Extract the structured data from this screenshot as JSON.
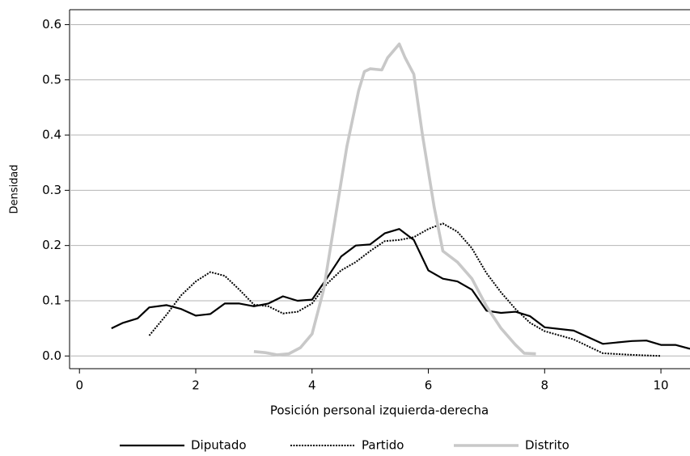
{
  "chart_data": {
    "type": "line",
    "xlabel": "Posición personal izquierda-derecha",
    "ylabel": "Densidad",
    "xlim": [
      -0.17,
      10.5
    ],
    "ylim": [
      -0.023,
      0.627
    ],
    "xticks": [
      0,
      2,
      4,
      6,
      8,
      10
    ],
    "yticks": [
      {
        "value": 0,
        "label": "0.0"
      },
      0.1,
      0.2,
      0.3,
      0.4,
      0.5,
      0.6
    ],
    "grid": true,
    "legend": "bottom",
    "series": [
      {
        "name": "Diputado",
        "color": "#000000",
        "linestyle": "solid",
        "x": [
          0.55,
          0.75,
          1.0,
          1.2,
          1.5,
          1.75,
          2.0,
          2.25,
          2.5,
          2.75,
          3.0,
          3.25,
          3.5,
          3.75,
          4.0,
          4.25,
          4.5,
          4.75,
          5.0,
          5.25,
          5.5,
          5.75,
          6.0,
          6.25,
          6.5,
          6.75,
          7.0,
          7.25,
          7.5,
          7.75,
          8.0,
          8.5,
          9.0,
          9.5,
          9.75,
          10.0,
          10.25,
          10.5
        ],
        "values": [
          0.05,
          0.06,
          0.068,
          0.088,
          0.092,
          0.085,
          0.073,
          0.076,
          0.095,
          0.095,
          0.09,
          0.095,
          0.108,
          0.1,
          0.102,
          0.14,
          0.18,
          0.2,
          0.202,
          0.222,
          0.23,
          0.21,
          0.155,
          0.14,
          0.135,
          0.12,
          0.082,
          0.078,
          0.08,
          0.072,
          0.052,
          0.046,
          0.022,
          0.027,
          0.028,
          0.02,
          0.02,
          0.013
        ]
      },
      {
        "name": "Partido",
        "color": "#000000",
        "linestyle": "dotted",
        "x": [
          1.2,
          1.5,
          1.75,
          2.0,
          2.25,
          2.5,
          2.75,
          3.0,
          3.25,
          3.5,
          3.75,
          4.0,
          4.25,
          4.5,
          4.75,
          5.0,
          5.25,
          5.5,
          5.75,
          6.0,
          6.25,
          6.5,
          6.75,
          7.0,
          7.25,
          7.5,
          7.75,
          8.0,
          8.5,
          9.0,
          9.5,
          10.0
        ],
        "values": [
          0.037,
          0.075,
          0.11,
          0.135,
          0.152,
          0.145,
          0.12,
          0.093,
          0.09,
          0.077,
          0.08,
          0.095,
          0.13,
          0.155,
          0.17,
          0.19,
          0.208,
          0.21,
          0.215,
          0.23,
          0.24,
          0.225,
          0.195,
          0.15,
          0.115,
          0.085,
          0.06,
          0.045,
          0.03,
          0.005,
          0.002,
          0.0
        ]
      },
      {
        "name": "Distrito",
        "color": "#c8c8c8",
        "linestyle": "solid",
        "x": [
          3.0,
          3.2,
          3.4,
          3.6,
          3.8,
          4.0,
          4.2,
          4.4,
          4.6,
          4.8,
          4.9,
          5.0,
          5.2,
          5.3,
          5.5,
          5.6,
          5.75,
          5.9,
          6.1,
          6.25,
          6.5,
          6.75,
          7.0,
          7.25,
          7.5,
          7.65,
          7.85
        ],
        "values": [
          0.008,
          0.006,
          0.002,
          0.004,
          0.015,
          0.04,
          0.12,
          0.25,
          0.38,
          0.48,
          0.515,
          0.52,
          0.518,
          0.54,
          0.565,
          0.54,
          0.51,
          0.4,
          0.27,
          0.19,
          0.17,
          0.14,
          0.09,
          0.05,
          0.02,
          0.005,
          0.004
        ]
      }
    ]
  }
}
